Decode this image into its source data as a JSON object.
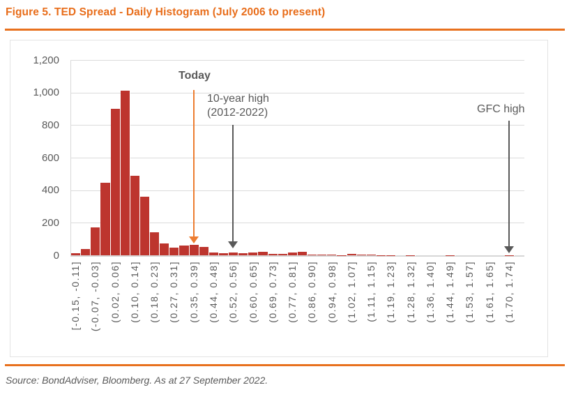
{
  "header": {
    "title": "Figure 5. TED Spread - Daily Histogram (July 2006 to present)"
  },
  "footer": {
    "source": "Source: BondAdviser, Bloomberg. As at 27 September 2022."
  },
  "colors": {
    "accent_orange": "#E86D1A",
    "today_arrow_orange": "#ED7D31",
    "bar_red": "#BD352E",
    "text_gray": "#595959",
    "gridline_gray": "#DBDBDB"
  },
  "chart_data": {
    "type": "bar",
    "title": "Figure 5. TED Spread - Daily Histogram (July 2006 to present)",
    "xlabel": "",
    "ylabel": "",
    "ylim": [
      0,
      1200
    ],
    "ytick_step": 200,
    "yticks": [
      "1,200",
      "1,000",
      "800",
      "600",
      "400",
      "200",
      "0"
    ],
    "grid": "horizontal",
    "legend": "none",
    "bins_total": 46,
    "labeled_every_n_bins": 2,
    "bin_labels": [
      "[-0.15, -0.11]",
      "(-0.07, -0.03]",
      "(0.02, 0.06]",
      "(0.10, 0.14]",
      "(0.18, 0.23]",
      "(0.27, 0.31]",
      "(0.35, 0.39]",
      "(0.44, 0.48]",
      "(0.52, 0.56]",
      "(0.60, 0.65]",
      "(0.69, 0.73]",
      "(0.77, 0.81]",
      "(0.86, 0.90]",
      "(0.94, 0.98]",
      "(1.02, 1.07]",
      "(1.11, 1.15]",
      "(1.19, 1.23]",
      "(1.28, 1.32]",
      "(1.36, 1.40]",
      "(1.44, 1.49]",
      "(1.53, 1.57]",
      "(1.61, 1.65]",
      "(1.70, 1.74]"
    ],
    "values": [
      15,
      38,
      170,
      445,
      900,
      1010,
      490,
      360,
      140,
      75,
      48,
      60,
      65,
      52,
      18,
      15,
      16,
      12,
      18,
      23,
      10,
      10,
      16,
      22,
      5,
      6,
      3,
      1,
      7,
      4,
      3,
      1,
      1,
      0,
      1,
      0,
      0,
      0,
      1,
      0,
      0,
      0,
      0,
      0,
      1,
      0
    ],
    "annotations": {
      "today": {
        "label": "Today",
        "arrow_bin": 13
      },
      "ten_year_high": {
        "label_line1": "10-year high",
        "label_line2": "(2012-2022)",
        "arrow_bin": 17
      },
      "gfc_high": {
        "label": "GFC high",
        "arrow_bin": 45
      }
    }
  }
}
